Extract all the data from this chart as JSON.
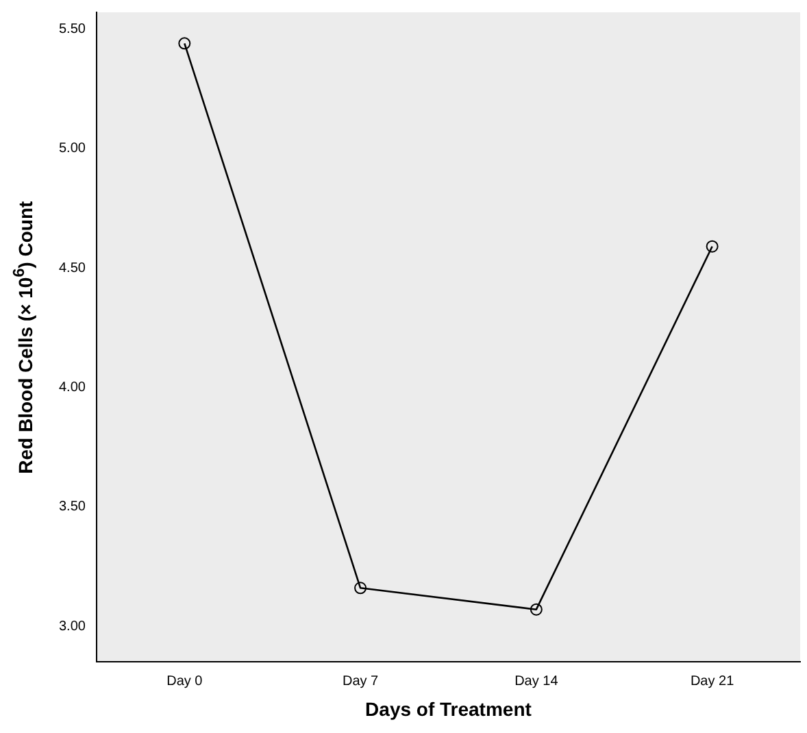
{
  "chart_data": {
    "type": "line",
    "xlabel": "Days of Treatment",
    "ylabel": "Red Blood Cells (× 10$^{6}$) Count",
    "categories": [
      "Day 0",
      "Day 7",
      "Day 14",
      "Day 21"
    ],
    "series": [
      {
        "color": "#000000",
        "values": [
          5.44,
          3.16,
          3.07,
          4.59
        ]
      }
    ],
    "ylim": [
      2.85,
      5.57
    ],
    "yticks": [
      {
        "value": 3,
        "label": "3.00"
      },
      {
        "value": 3.5,
        "label": "3.50"
      },
      {
        "value": 4,
        "label": "4.00"
      },
      {
        "value": 4.5,
        "label": "4.50"
      },
      {
        "value": 5,
        "label": "5.00"
      },
      {
        "value": 5.5,
        "label": "5.50"
      }
    ],
    "grid": false,
    "legend": false,
    "marker": "circle",
    "line_style": "solid"
  }
}
